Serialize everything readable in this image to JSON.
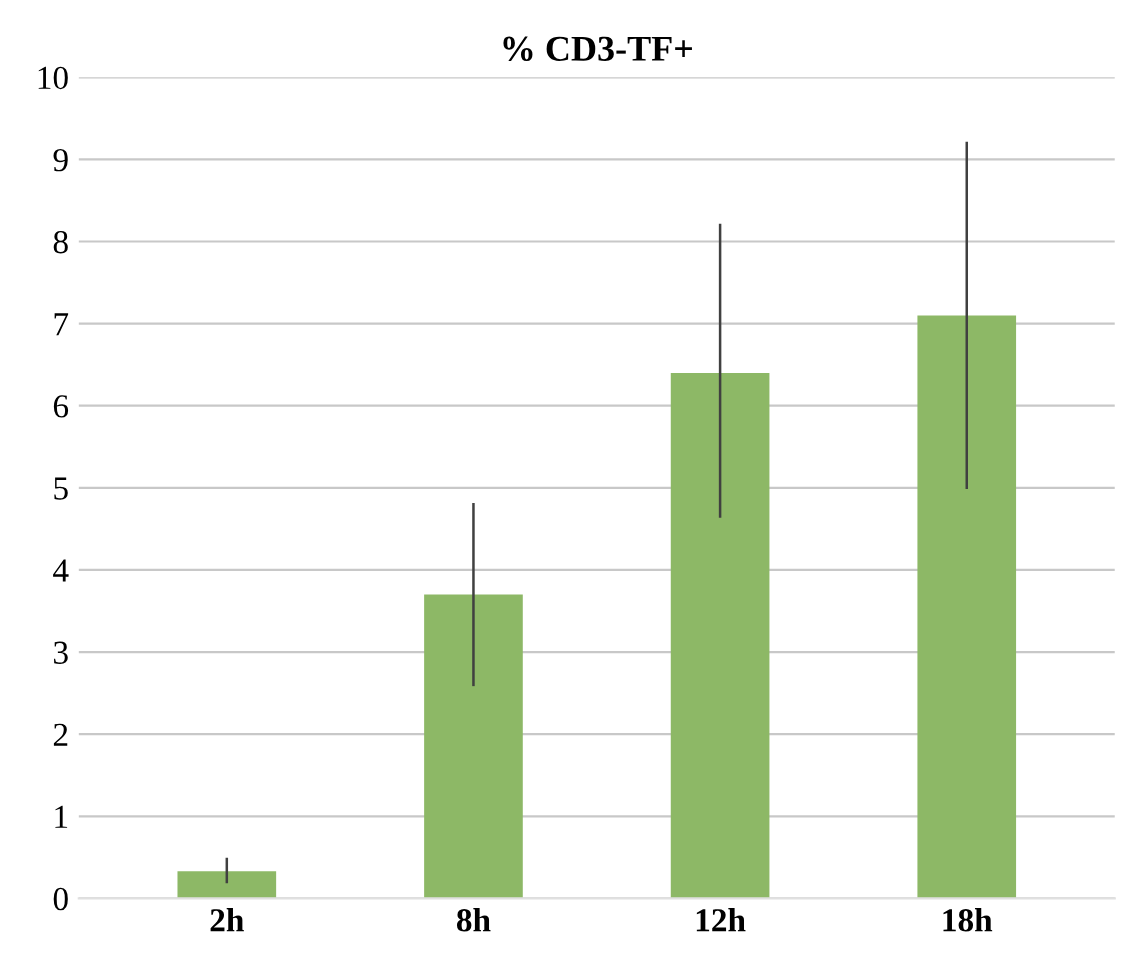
{
  "chart_data": {
    "type": "bar",
    "title": "% CD3-TF+",
    "categories": [
      "2h",
      "8h",
      "12h",
      "18h"
    ],
    "values": [
      0.33,
      3.7,
      6.4,
      7.1
    ],
    "errors": [
      [
        0.2,
        0.48
      ],
      [
        2.6,
        4.8
      ],
      [
        4.65,
        8.2
      ],
      [
        5.0,
        9.2
      ]
    ],
    "color": "#8db866",
    "ylim": [
      0,
      10
    ],
    "yticks": [
      0,
      1,
      2,
      3,
      4,
      5,
      6,
      7,
      8,
      9,
      10
    ],
    "grid": "y"
  }
}
